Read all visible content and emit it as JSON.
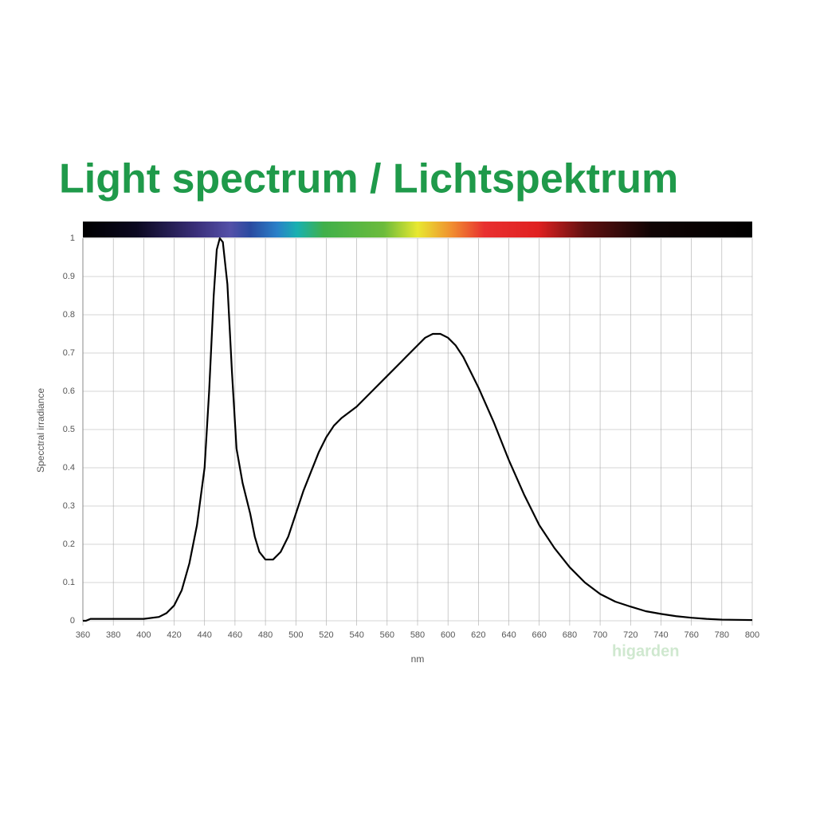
{
  "chart_data": {
    "type": "line",
    "title": "Light spectrum / Lichtspektrum",
    "x_label": "nm",
    "y_label": "Specctral irradiance",
    "watermark": "higarden",
    "xlim": [
      360,
      800
    ],
    "ylim": [
      0,
      1
    ],
    "xticks": [
      360,
      380,
      400,
      420,
      440,
      460,
      480,
      500,
      520,
      540,
      560,
      580,
      600,
      620,
      640,
      660,
      680,
      700,
      720,
      740,
      760,
      780,
      800
    ],
    "yticks": [
      0,
      0.1,
      0.2,
      0.3,
      0.4,
      0.5,
      0.6,
      0.7,
      0.8,
      0.9,
      1
    ],
    "grid": true,
    "series": [
      {
        "color": "#000000",
        "x": [
          360,
          362,
          365,
          400,
          410,
          415,
          420,
          425,
          430,
          435,
          440,
          443,
          446,
          448,
          450,
          452,
          455,
          458,
          461,
          465,
          470,
          473,
          476,
          480,
          485,
          490,
          495,
          500,
          505,
          510,
          515,
          520,
          525,
          530,
          540,
          550,
          560,
          570,
          580,
          585,
          590,
          595,
          600,
          605,
          610,
          620,
          630,
          640,
          650,
          660,
          670,
          680,
          690,
          700,
          710,
          720,
          730,
          740,
          750,
          760,
          770,
          780,
          800
        ],
        "values": [
          0,
          0,
          0.005,
          0.005,
          0.01,
          0.02,
          0.04,
          0.08,
          0.15,
          0.25,
          0.4,
          0.6,
          0.85,
          0.97,
          1.0,
          0.99,
          0.88,
          0.65,
          0.45,
          0.36,
          0.28,
          0.22,
          0.18,
          0.16,
          0.16,
          0.18,
          0.22,
          0.28,
          0.34,
          0.39,
          0.44,
          0.48,
          0.51,
          0.53,
          0.56,
          0.6,
          0.64,
          0.68,
          0.72,
          0.74,
          0.75,
          0.75,
          0.74,
          0.72,
          0.69,
          0.61,
          0.52,
          0.42,
          0.33,
          0.25,
          0.19,
          0.14,
          0.1,
          0.07,
          0.05,
          0.037,
          0.025,
          0.018,
          0.012,
          0.008,
          0.005,
          0.003,
          0.002
        ]
      }
    ]
  }
}
